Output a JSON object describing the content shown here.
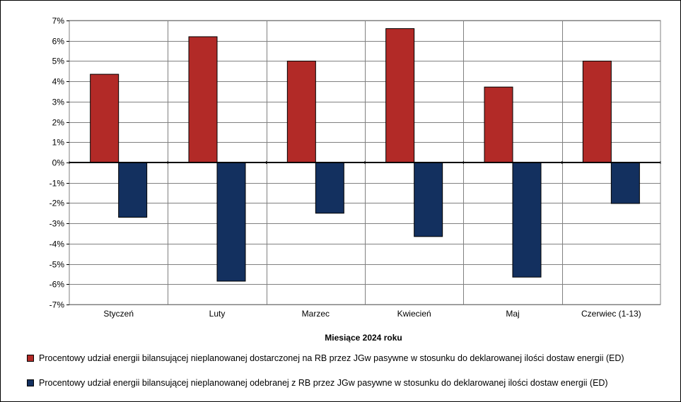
{
  "chart_data": {
    "type": "bar",
    "categories": [
      "Styczeń",
      "Luty",
      "Marzec",
      "Kwiecień",
      "Maj",
      "Czerwiec (1-13)"
    ],
    "series": [
      {
        "name": "Procentowy udział energii bilansującej nieplanowanej dostarczonej na RB przez JGw pasywne w stosunku do deklarowanej ilości dostaw energii (ED)",
        "color": "#b22a27",
        "values": [
          4.35,
          6.2,
          5.0,
          6.6,
          3.72,
          5.0
        ]
      },
      {
        "name": "Procentowy udział energii bilansującej nieplanowanej odebranej z RB przez JGw pasywne w stosunku do deklarowanej ilości dostaw energii (ED)",
        "color": "#13305f",
        "values": [
          -2.7,
          -5.85,
          -2.5,
          -3.65,
          -5.65,
          -2.02
        ]
      }
    ],
    "ylim": [
      -7,
      7
    ],
    "yticks": [
      "-7%",
      "-6%",
      "-5%",
      "-4%",
      "-3%",
      "-2%",
      "-1%",
      "0%",
      "1%",
      "2%",
      "3%",
      "4%",
      "5%",
      "6%",
      "7%"
    ],
    "xlabel": "Miesiące 2024  roku",
    "ylabel": "",
    "grid": true,
    "legend_position": "bottom"
  }
}
